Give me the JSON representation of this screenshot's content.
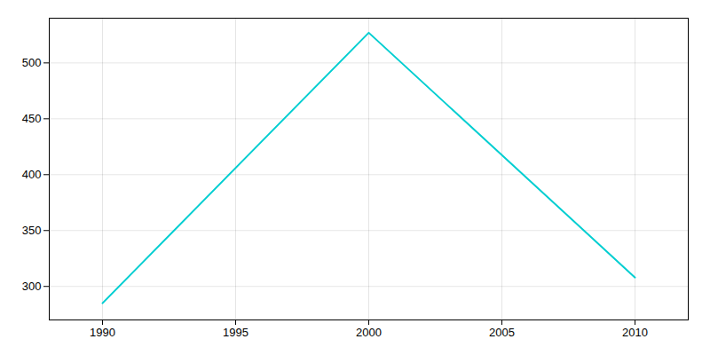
{
  "chart_data": {
    "type": "line",
    "x": [
      1990,
      2000,
      2010
    ],
    "values": [
      285,
      527,
      308
    ],
    "color": "#00CED1",
    "xlim": [
      1988,
      2012
    ],
    "xticks": [
      1990,
      1995,
      2000,
      2005,
      2010
    ],
    "ylim": [
      270,
      540
    ],
    "yticks": [
      300,
      350,
      400,
      450,
      500
    ],
    "grid": true
  }
}
